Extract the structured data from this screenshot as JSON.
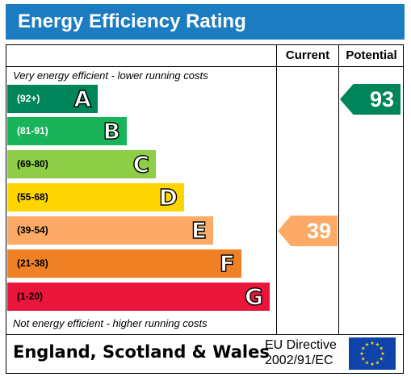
{
  "title": "Energy Efficiency Rating",
  "columns": {
    "current": "Current",
    "potential": "Potential"
  },
  "notes": {
    "top": "Very energy efficient - lower running costs",
    "bottom": "Not energy efficient - higher running costs"
  },
  "bands": [
    {
      "range": "(92+)",
      "letter": "A",
      "color": "#00855a",
      "range_color": "#ffffff"
    },
    {
      "range": "(81-91)",
      "letter": "B",
      "color": "#19b459",
      "range_color": "#ffffff"
    },
    {
      "range": "(69-80)",
      "letter": "C",
      "color": "#8dce46",
      "range_color": "#000000"
    },
    {
      "range": "(55-68)",
      "letter": "D",
      "color": "#ffd500",
      "range_color": "#000000"
    },
    {
      "range": "(39-54)",
      "letter": "E",
      "color": "#fcaa65",
      "range_color": "#000000"
    },
    {
      "range": "(21-38)",
      "letter": "F",
      "color": "#ef8023",
      "range_color": "#000000"
    },
    {
      "range": "(1-20)",
      "letter": "G",
      "color": "#e9153b",
      "range_color": "#000000"
    }
  ],
  "current": {
    "value": "39",
    "band": "E",
    "color": "#fcaa65"
  },
  "potential": {
    "value": "93",
    "band": "A",
    "color": "#00855a"
  },
  "footer": {
    "region": "England, Scotland & Wales",
    "directive_line1": "EU Directive",
    "directive_line2": "2002/91/EC"
  }
}
